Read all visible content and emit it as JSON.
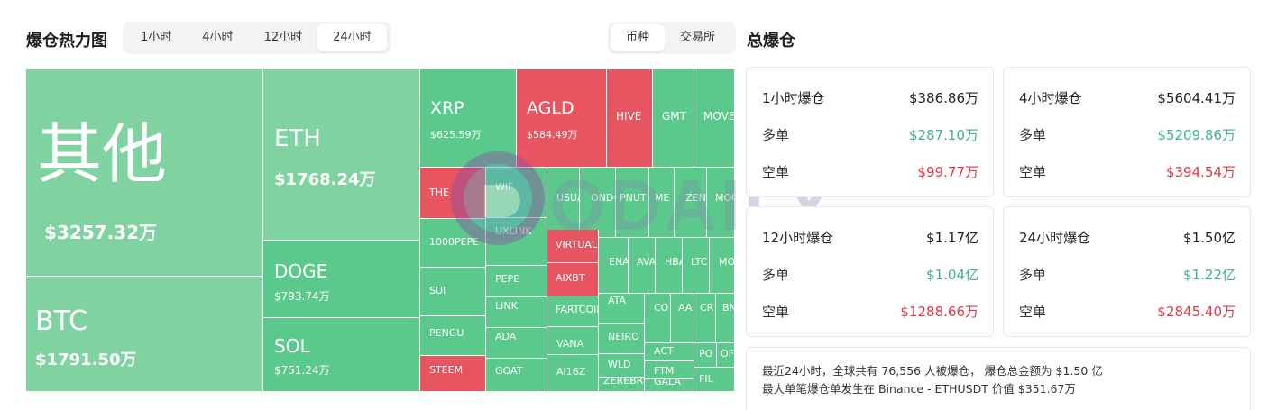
{
  "heatmap": {
    "title": "爆仓热力图",
    "time_tabs": [
      "1小时",
      "4小时",
      "12小时",
      "24小时"
    ],
    "active_time_tab": 3,
    "group_tabs": [
      "币种",
      "交易所"
    ],
    "active_group_tab": 0,
    "colors": {
      "long_green": "#5cc98c",
      "light_green": "#80d2a1",
      "short_red": "#e65560"
    },
    "cells": [
      {
        "symbol": "其他",
        "value": "$3257.32万"
      },
      {
        "symbol": "BTC",
        "value": "$1791.50万"
      },
      {
        "symbol": "ETH",
        "value": "$1768.24万"
      },
      {
        "symbol": "DOGE",
        "value": "$793.74万"
      },
      {
        "symbol": "SOL",
        "value": "$751.24万"
      },
      {
        "symbol": "XRP",
        "value": "$625.59万"
      },
      {
        "symbol": "AGLD",
        "value": "$584.49万"
      },
      {
        "symbol": "HIVE",
        "value": ""
      },
      {
        "symbol": "GMT",
        "value": ""
      },
      {
        "symbol": "MOVE",
        "value": ""
      },
      {
        "symbol": "THE",
        "value": ""
      },
      {
        "symbol": "WIF",
        "value": ""
      },
      {
        "symbol": "USUAL",
        "value": ""
      },
      {
        "symbol": "ONDO",
        "value": ""
      },
      {
        "symbol": "PNUT",
        "value": ""
      },
      {
        "symbol": "ME",
        "value": ""
      },
      {
        "symbol": "ZEN",
        "value": ""
      },
      {
        "symbol": "MOOD",
        "value": ""
      },
      {
        "symbol": "1000PEPE",
        "value": ""
      },
      {
        "symbol": "UXLINK",
        "value": ""
      },
      {
        "symbol": "VIRTUAL",
        "value": ""
      },
      {
        "symbol": "ENA",
        "value": ""
      },
      {
        "symbol": "AVA",
        "value": ""
      },
      {
        "symbol": "HBA",
        "value": ""
      },
      {
        "symbol": "LTC",
        "value": ""
      },
      {
        "symbol": "MO",
        "value": ""
      },
      {
        "symbol": "PEPE",
        "value": ""
      },
      {
        "symbol": "AIXBT",
        "value": ""
      },
      {
        "symbol": "SUI",
        "value": ""
      },
      {
        "symbol": "LINK",
        "value": ""
      },
      {
        "symbol": "ATA",
        "value": ""
      },
      {
        "symbol": "CO",
        "value": ""
      },
      {
        "symbol": "AA",
        "value": ""
      },
      {
        "symbol": "CR",
        "value": ""
      },
      {
        "symbol": "BN",
        "value": ""
      },
      {
        "symbol": "FARTCOIN",
        "value": ""
      },
      {
        "symbol": "NEIRO",
        "value": ""
      },
      {
        "symbol": "PENGU",
        "value": ""
      },
      {
        "symbol": "ADA",
        "value": ""
      },
      {
        "symbol": "PO",
        "value": ""
      },
      {
        "symbol": "OF",
        "value": ""
      },
      {
        "symbol": "VANA",
        "value": ""
      },
      {
        "symbol": "ACT",
        "value": ""
      },
      {
        "symbol": "WLD",
        "value": ""
      },
      {
        "symbol": "FTM",
        "value": ""
      },
      {
        "symbol": "STEEM",
        "value": ""
      },
      {
        "symbol": "GOAT",
        "value": ""
      },
      {
        "symbol": "AI16Z",
        "value": ""
      },
      {
        "symbol": "ZEREBRO",
        "value": ""
      },
      {
        "symbol": "GALA",
        "value": ""
      },
      {
        "symbol": "FIL",
        "value": ""
      }
    ]
  },
  "total": {
    "title": "总爆仓",
    "cards": [
      {
        "period": "1小时爆仓",
        "total": "$386.86万",
        "long_label": "多单",
        "long": "$287.10万",
        "short_label": "空单",
        "short": "$99.77万"
      },
      {
        "period": "4小时爆仓",
        "total": "$5604.41万",
        "long_label": "多单",
        "long": "$5209.86万",
        "short_label": "空单",
        "short": "$394.54万"
      },
      {
        "period": "12小时爆仓",
        "total": "$1.17亿",
        "long_label": "多单",
        "long": "$1.04亿",
        "short_label": "空单",
        "short": "$1288.66万"
      },
      {
        "period": "24小时爆仓",
        "total": "$1.50亿",
        "long_label": "多单",
        "long": "$1.22亿",
        "short_label": "空单",
        "short": "$2845.40万"
      }
    ],
    "summary_line1": "最近24小时，全球共有 76,556 人被爆仓， 爆仓总金额为 $1.50 亿",
    "summary_line2": "最大单笔爆仓单发生在 Binance - ETHUSDT 价值 $351.67万"
  },
  "watermark": {
    "text": "ODAILY",
    "icon": "odaily-logo-icon"
  }
}
